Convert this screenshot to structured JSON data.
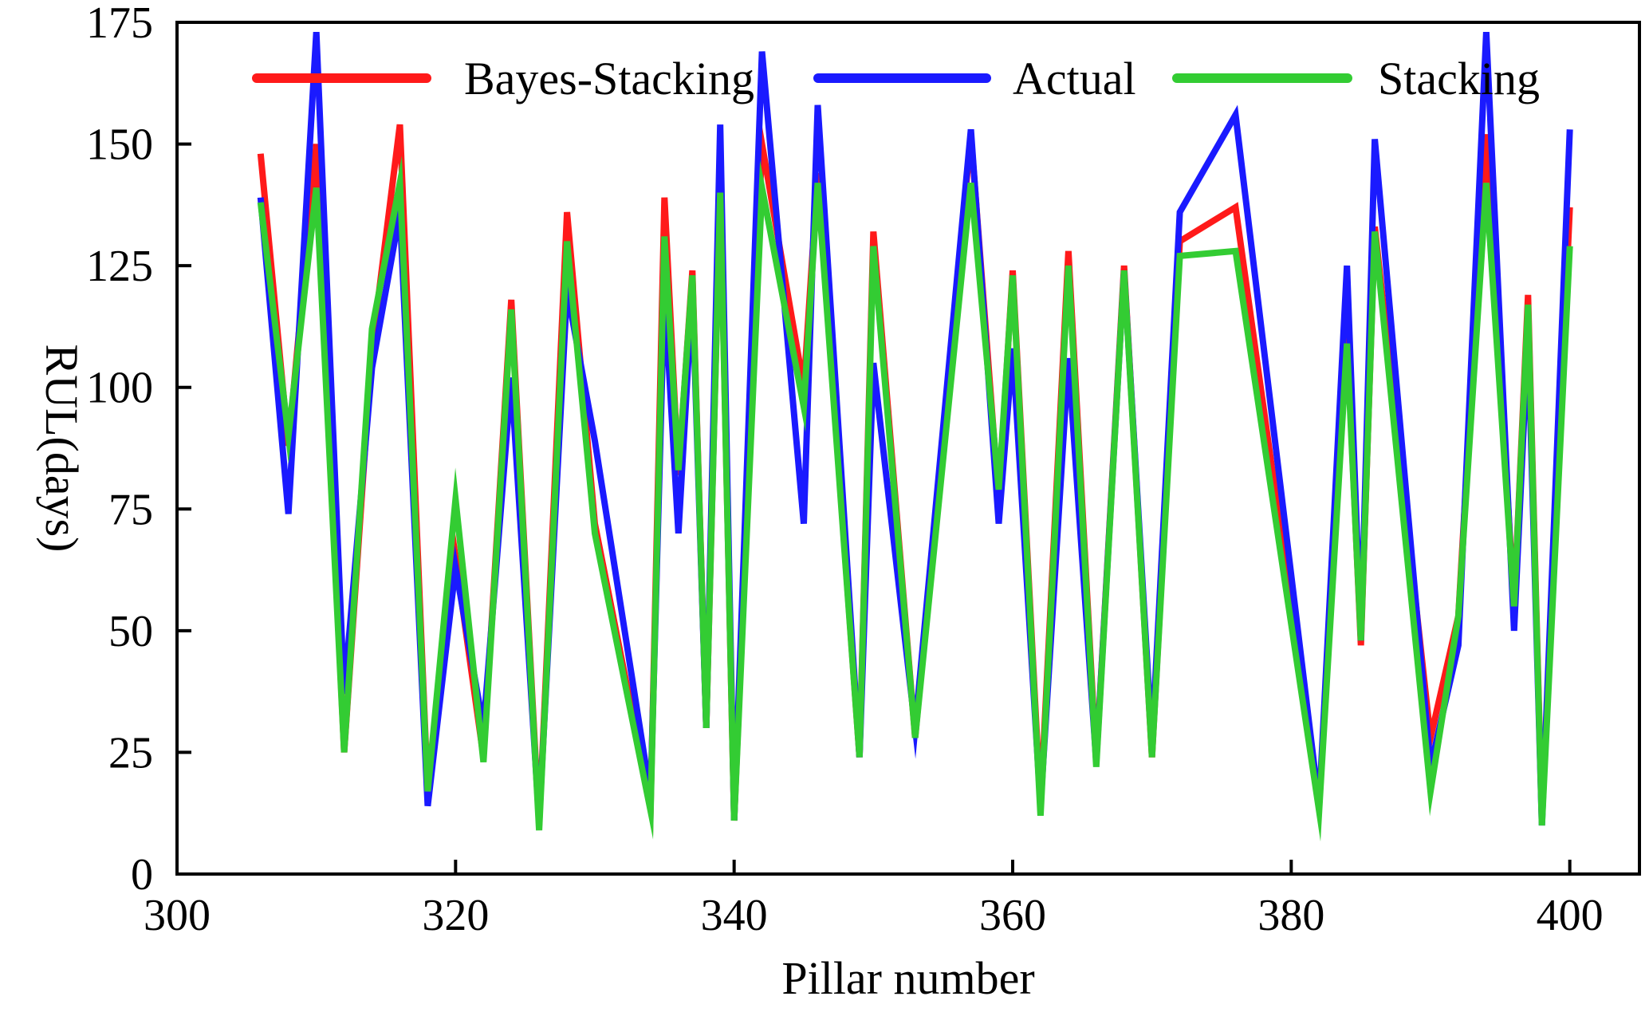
{
  "chart_data": {
    "type": "line",
    "title": "",
    "xlabel": "Pillar number",
    "ylabel": "RUL(days)",
    "xlim": [
      300,
      405
    ],
    "ylim": [
      0,
      175
    ],
    "xticks": [
      300,
      320,
      340,
      360,
      380,
      400
    ],
    "yticks": [
      0,
      25,
      50,
      75,
      100,
      125,
      150,
      175
    ],
    "grid": false,
    "legend_position": "top",
    "x": [
      306,
      308,
      310,
      312,
      314,
      316,
      318,
      320,
      322,
      324,
      326,
      328,
      330,
      334,
      335,
      336,
      337,
      338,
      339,
      340,
      342,
      345,
      346,
      349,
      350,
      353,
      357,
      359,
      360,
      362,
      364,
      366,
      368,
      370,
      372,
      376,
      382,
      384,
      385,
      386,
      390,
      392,
      394,
      396,
      397,
      398,
      400
    ],
    "series": [
      {
        "name": "Bayes-Stacking",
        "color": "#ff1a1a",
        "values": [
          148,
          88,
          150,
          25,
          108,
          154,
          17,
          65,
          24,
          118,
          10,
          136,
          72,
          14,
          139,
          82,
          124,
          30,
          141,
          11,
          150,
          100,
          144,
          24,
          132,
          28,
          152,
          77,
          124,
          14,
          128,
          23,
          125,
          24,
          130,
          137,
          14,
          111,
          47,
          133,
          28,
          53,
          152,
          55,
          119,
          11,
          137
        ]
      },
      {
        "name": "Actual",
        "color": "#1a1aff",
        "values": [
          139,
          74,
          173,
          37,
          104,
          136,
          14,
          63,
          30,
          102,
          11,
          120,
          89,
          16,
          120,
          70,
          120,
          30,
          154,
          11,
          169,
          72,
          158,
          24,
          105,
          30,
          153,
          72,
          108,
          14,
          106,
          23,
          124,
          27,
          136,
          156,
          14,
          125,
          48,
          151,
          22,
          47,
          173,
          50,
          111,
          10,
          153
        ]
      },
      {
        "name": "Stacking",
        "color": "#33cc33",
        "values": [
          138,
          90,
          141,
          25,
          112,
          142,
          17,
          77,
          23,
          116,
          9,
          130,
          70,
          13,
          131,
          83,
          123,
          30,
          140,
          11,
          141,
          96,
          142,
          24,
          129,
          28,
          142,
          79,
          123,
          12,
          125,
          22,
          124,
          24,
          127,
          128,
          13,
          109,
          48,
          132,
          17,
          53,
          142,
          55,
          117,
          10,
          129
        ]
      }
    ]
  }
}
